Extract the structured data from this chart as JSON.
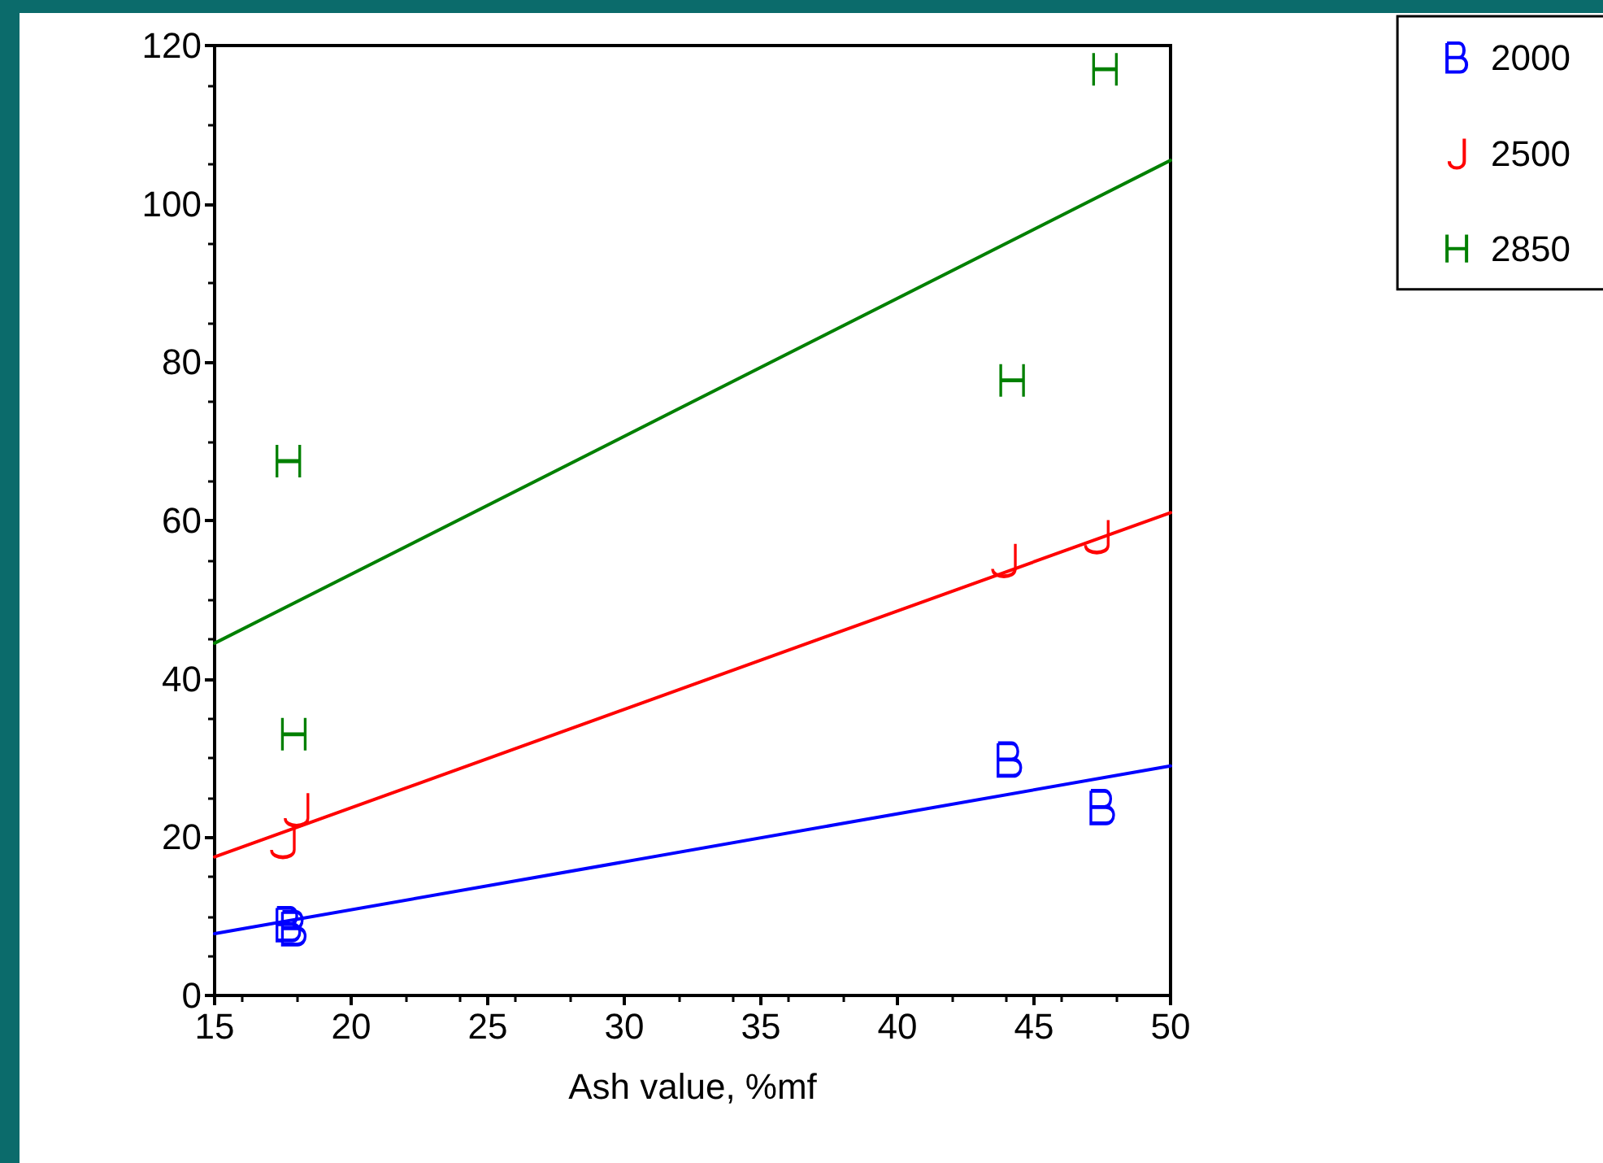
{
  "chart_data": {
    "type": "scatter",
    "xlabel": "Ash value, %mf",
    "xlim": [
      15,
      50
    ],
    "ylim": [
      0,
      120
    ],
    "xticks": [
      15,
      20,
      25,
      30,
      35,
      40,
      45,
      50
    ],
    "yticks": [
      0,
      20,
      40,
      60,
      80,
      100,
      120
    ],
    "grid": false,
    "legend": "top right",
    "series": [
      {
        "name": "2000",
        "color": "#0000ff",
        "x": [
          17.7,
          17.9,
          44.1,
          47.5
        ],
        "values": [
          9,
          8.5,
          29.8,
          23.8
        ]
      },
      {
        "name": "2500",
        "color": "#ff0000",
        "x": [
          18,
          17.5,
          43.9,
          47.3
        ],
        "values": [
          23.5,
          19.5,
          55,
          58
        ]
      },
      {
        "name": "2850",
        "color": "#008000",
        "x": [
          17.7,
          17.9,
          44.2,
          47.6
        ],
        "values": [
          67.5,
          33,
          77.7,
          117
        ]
      },
      {
        "type": "line",
        "color": "#0000ff",
        "x": [
          15,
          50
        ],
        "values": [
          7.8,
          29
        ]
      },
      {
        "type": "line",
        "color": "#ff0000",
        "x": [
          15,
          50
        ],
        "values": [
          17.5,
          61
        ]
      },
      {
        "type": "line",
        "color": "#008000",
        "x": [
          15,
          50
        ],
        "values": [
          44.5,
          105.5
        ]
      }
    ]
  }
}
